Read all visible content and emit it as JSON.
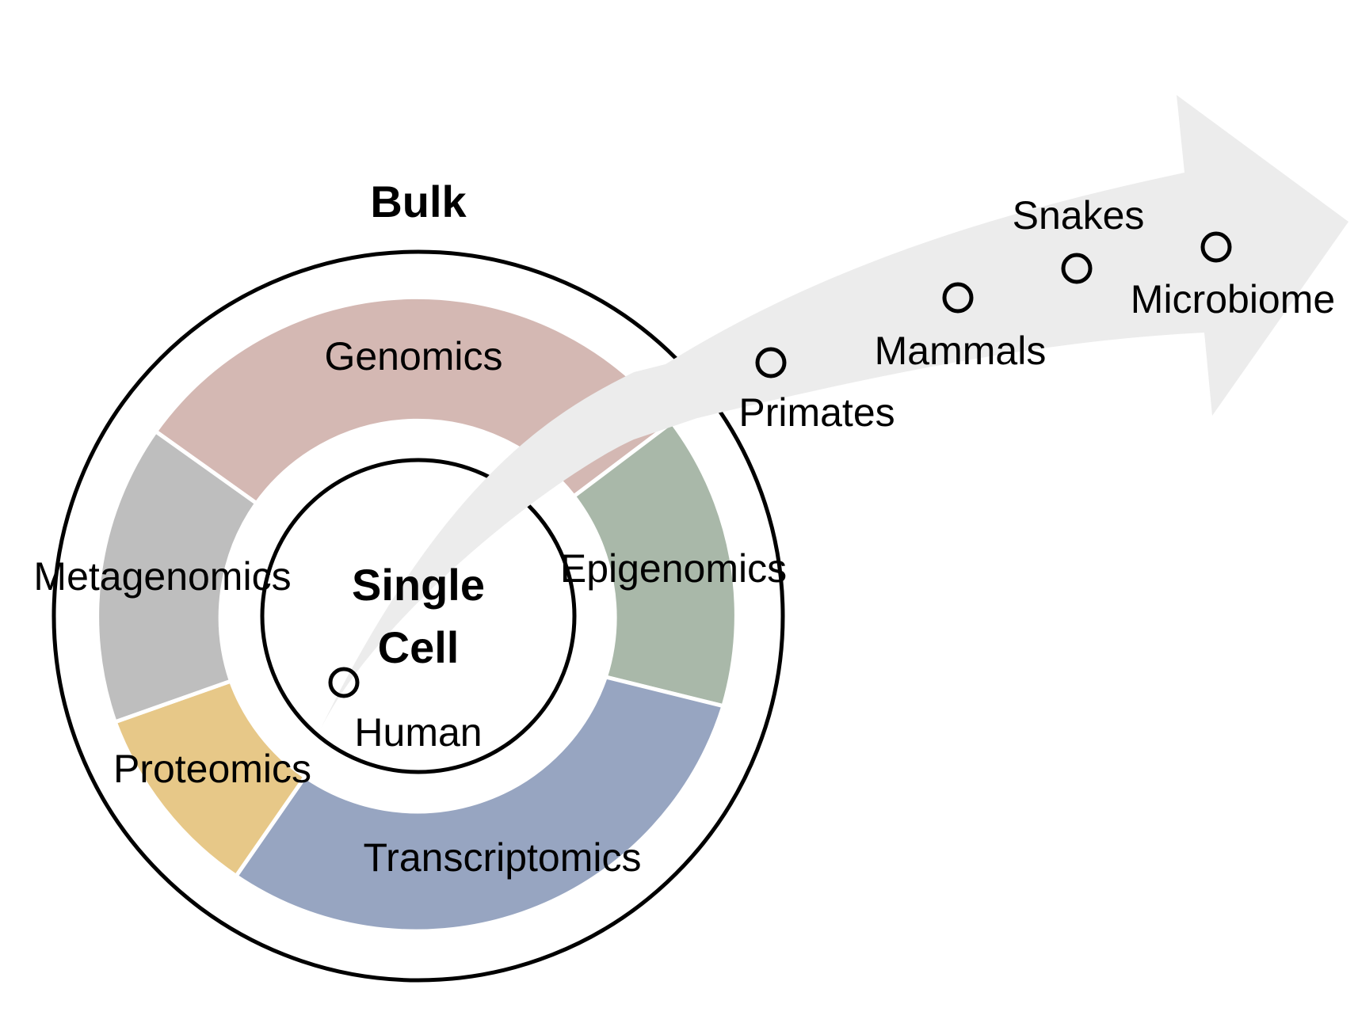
{
  "title": "Bulk",
  "center_label": [
    "Single",
    "Cell"
  ],
  "segments": [
    {
      "label": "Genomics",
      "color": "#d4b8b3"
    },
    {
      "label": "Epigenomics",
      "color": "#a9b8a9"
    },
    {
      "label": "Transcriptomics",
      "color": "#97a5c1"
    },
    {
      "label": "Proteomics",
      "color": "#e7c888"
    },
    {
      "label": "Metagenomics",
      "color": "#bebebe"
    }
  ],
  "species": [
    "Human",
    "Primates",
    "Mammals",
    "Snakes",
    "Microbiome"
  ],
  "colors": {
    "arrow": "#ececec",
    "outline": "#000000",
    "background": "#ffffff"
  }
}
